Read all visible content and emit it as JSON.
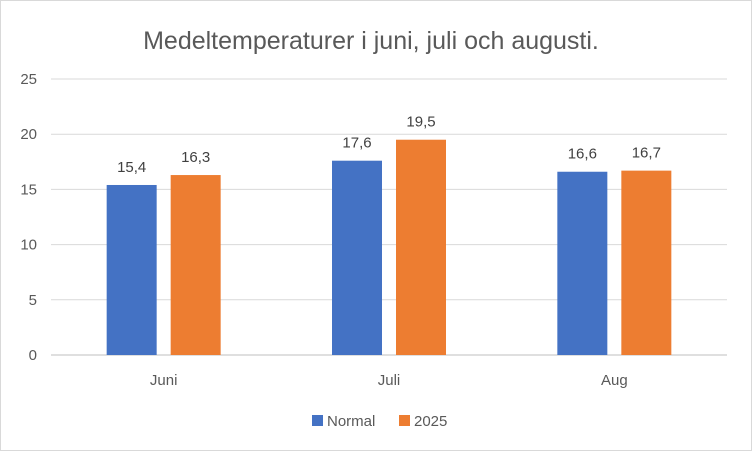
{
  "chart_data": {
    "type": "bar",
    "title": "Medeltemperaturer i juni, juli och augusti.",
    "xlabel": "",
    "ylabel": "",
    "categories": [
      "Juni",
      "Juli",
      "Aug"
    ],
    "series": [
      {
        "name": "Normal",
        "values": [
          15.4,
          17.6,
          16.6
        ],
        "labels": [
          "15,4",
          "17,6",
          "16,6"
        ],
        "color": "#4472C4"
      },
      {
        "name": "2025",
        "values": [
          16.3,
          19.5,
          16.7
        ],
        "labels": [
          "16,3",
          "19,5",
          "16,7"
        ],
        "color": "#ED7D31"
      }
    ],
    "ylim": [
      0,
      25
    ],
    "yticks": [
      0,
      5,
      10,
      15,
      20,
      25
    ],
    "ytick_labels": [
      "0",
      "5",
      "10",
      "15",
      "20",
      "25"
    ],
    "grid": true,
    "legend_position": "bottom"
  }
}
